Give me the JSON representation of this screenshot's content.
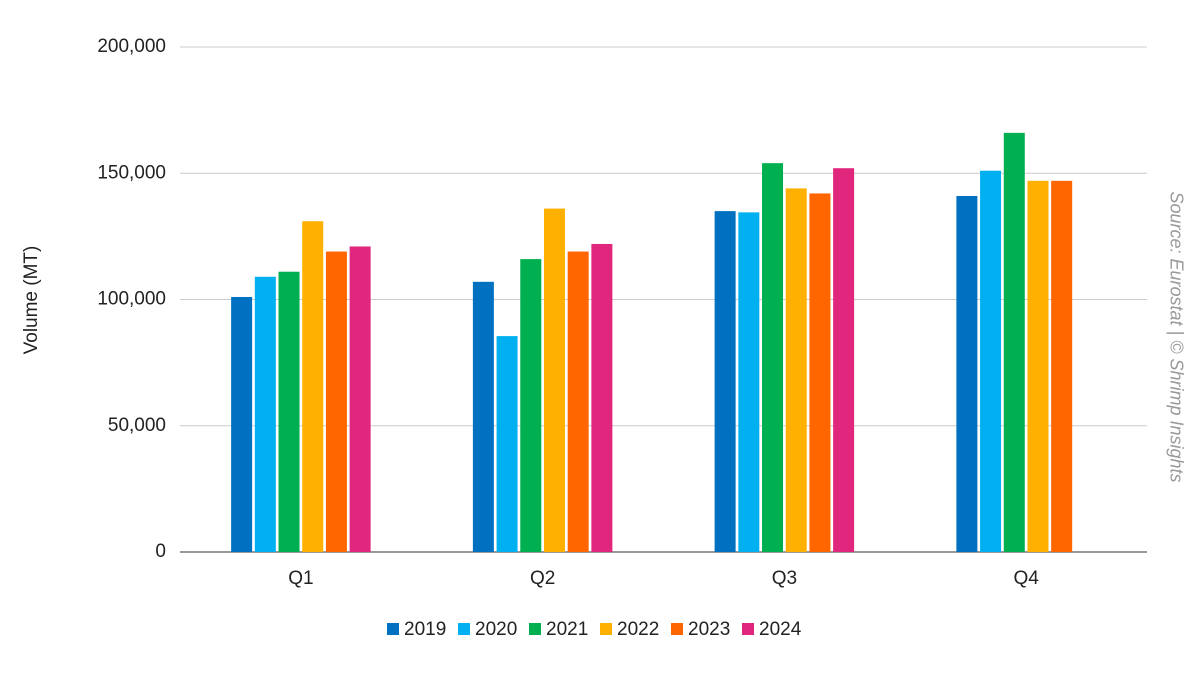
{
  "chart_data": {
    "type": "bar",
    "y_label": "Volume (MT)",
    "annotation": "Source: Eurostat | © Shrimp Insights",
    "categories": [
      "Q1",
      "Q2",
      "Q3",
      "Q4"
    ],
    "series": [
      {
        "name": "2019",
        "color": "#0070c0",
        "values": [
          101000,
          107000,
          135000,
          141000
        ]
      },
      {
        "name": "2020",
        "color": "#00b0f0",
        "values": [
          109000,
          85500,
          134500,
          151000
        ]
      },
      {
        "name": "2021",
        "color": "#00b050",
        "values": [
          111000,
          116000,
          154000,
          166000
        ]
      },
      {
        "name": "2022",
        "color": "#ffb000",
        "values": [
          131000,
          136000,
          144000,
          147000
        ]
      },
      {
        "name": "2023",
        "color": "#ff6600",
        "values": [
          119000,
          119000,
          142000,
          147000
        ]
      },
      {
        "name": "2024",
        "color": "#e0267d",
        "values": [
          121000,
          122000,
          152000,
          null
        ]
      }
    ],
    "ylim": [
      0,
      200000
    ],
    "yticks": [
      0,
      {
        "value": 50000,
        "label": "50,000"
      },
      {
        "value": 100000,
        "label": "100,000"
      },
      {
        "value": 150000,
        "label": "150,000"
      },
      {
        "value": 200000,
        "label": "200,000"
      }
    ],
    "grid": true
  }
}
